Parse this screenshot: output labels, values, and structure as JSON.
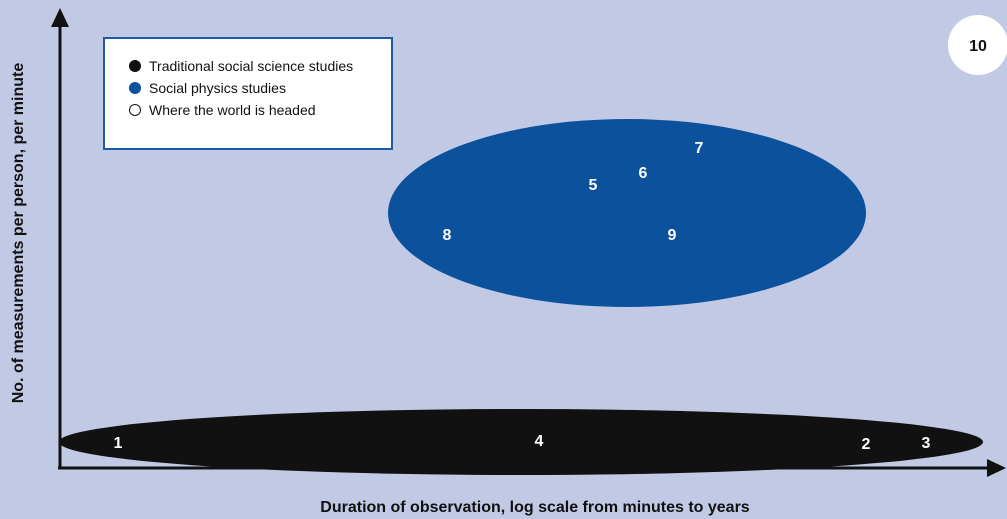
{
  "axes": {
    "x_label": "Duration of observation, log scale from minutes to years",
    "y_label": "No. of measurements per person, per minute"
  },
  "legend": [
    {
      "label": "Traditional social science studies",
      "color": "#111111",
      "hollow": false
    },
    {
      "label": "Social physics studies",
      "color": "#0b519c",
      "hollow": false
    },
    {
      "label": "Where the world is headed",
      "color": "#ffffff",
      "hollow": true
    }
  ],
  "regions": {
    "traditional": {
      "color": "#111111"
    },
    "social_physics": {
      "color": "#0b519c"
    },
    "future": {
      "color": "#ffffff"
    }
  },
  "points": [
    {
      "label": "1"
    },
    {
      "label": "2"
    },
    {
      "label": "3"
    },
    {
      "label": "4"
    },
    {
      "label": "5"
    },
    {
      "label": "6"
    },
    {
      "label": "7"
    },
    {
      "label": "8"
    },
    {
      "label": "9"
    },
    {
      "label": "10"
    }
  ]
}
